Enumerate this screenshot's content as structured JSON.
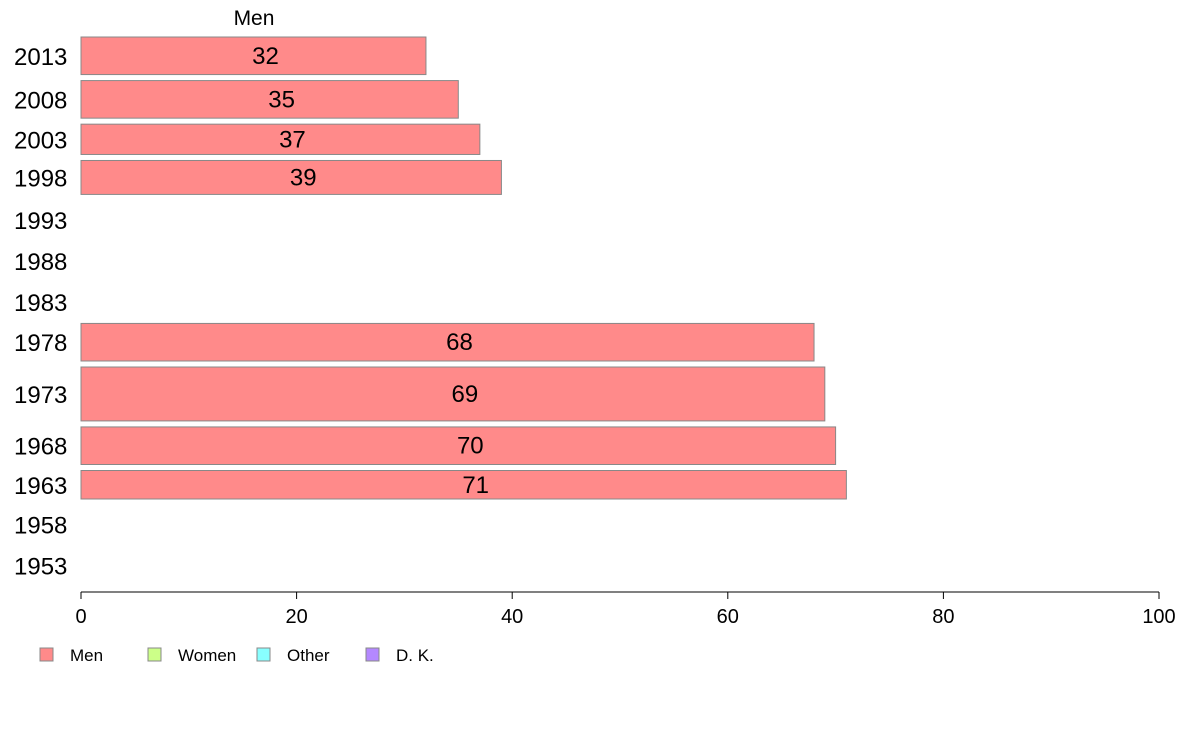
{
  "chart_data": {
    "type": "bar",
    "orientation": "horizontal",
    "series_title": "Men",
    "categories": [
      "2013",
      "2008",
      "2003",
      "1998",
      "1993",
      "1988",
      "1983",
      "1978",
      "1973",
      "1968",
      "1963",
      "1958",
      "1953"
    ],
    "series": [
      {
        "name": "Men",
        "color": "#ff8a8a",
        "values": [
          32,
          35,
          37,
          39,
          null,
          null,
          null,
          68,
          69,
          70,
          71,
          null,
          null
        ]
      }
    ],
    "bar_weights": [
      1.2,
      1.2,
      1.0,
      1.1,
      0,
      0,
      0,
      1.2,
      1.65,
      1.2,
      0.95,
      0,
      0
    ],
    "xlim": [
      0,
      100
    ],
    "xticks": [
      0,
      20,
      40,
      60,
      80,
      100
    ],
    "legend": [
      {
        "label": "Men",
        "color": "#ff8a8a"
      },
      {
        "label": "Women",
        "color": "#ccff88"
      },
      {
        "label": "Other",
        "color": "#88ffff"
      },
      {
        "label": "D. K.",
        "color": "#b488ff"
      }
    ],
    "legend_position": "bottom-left",
    "grid": false
  }
}
